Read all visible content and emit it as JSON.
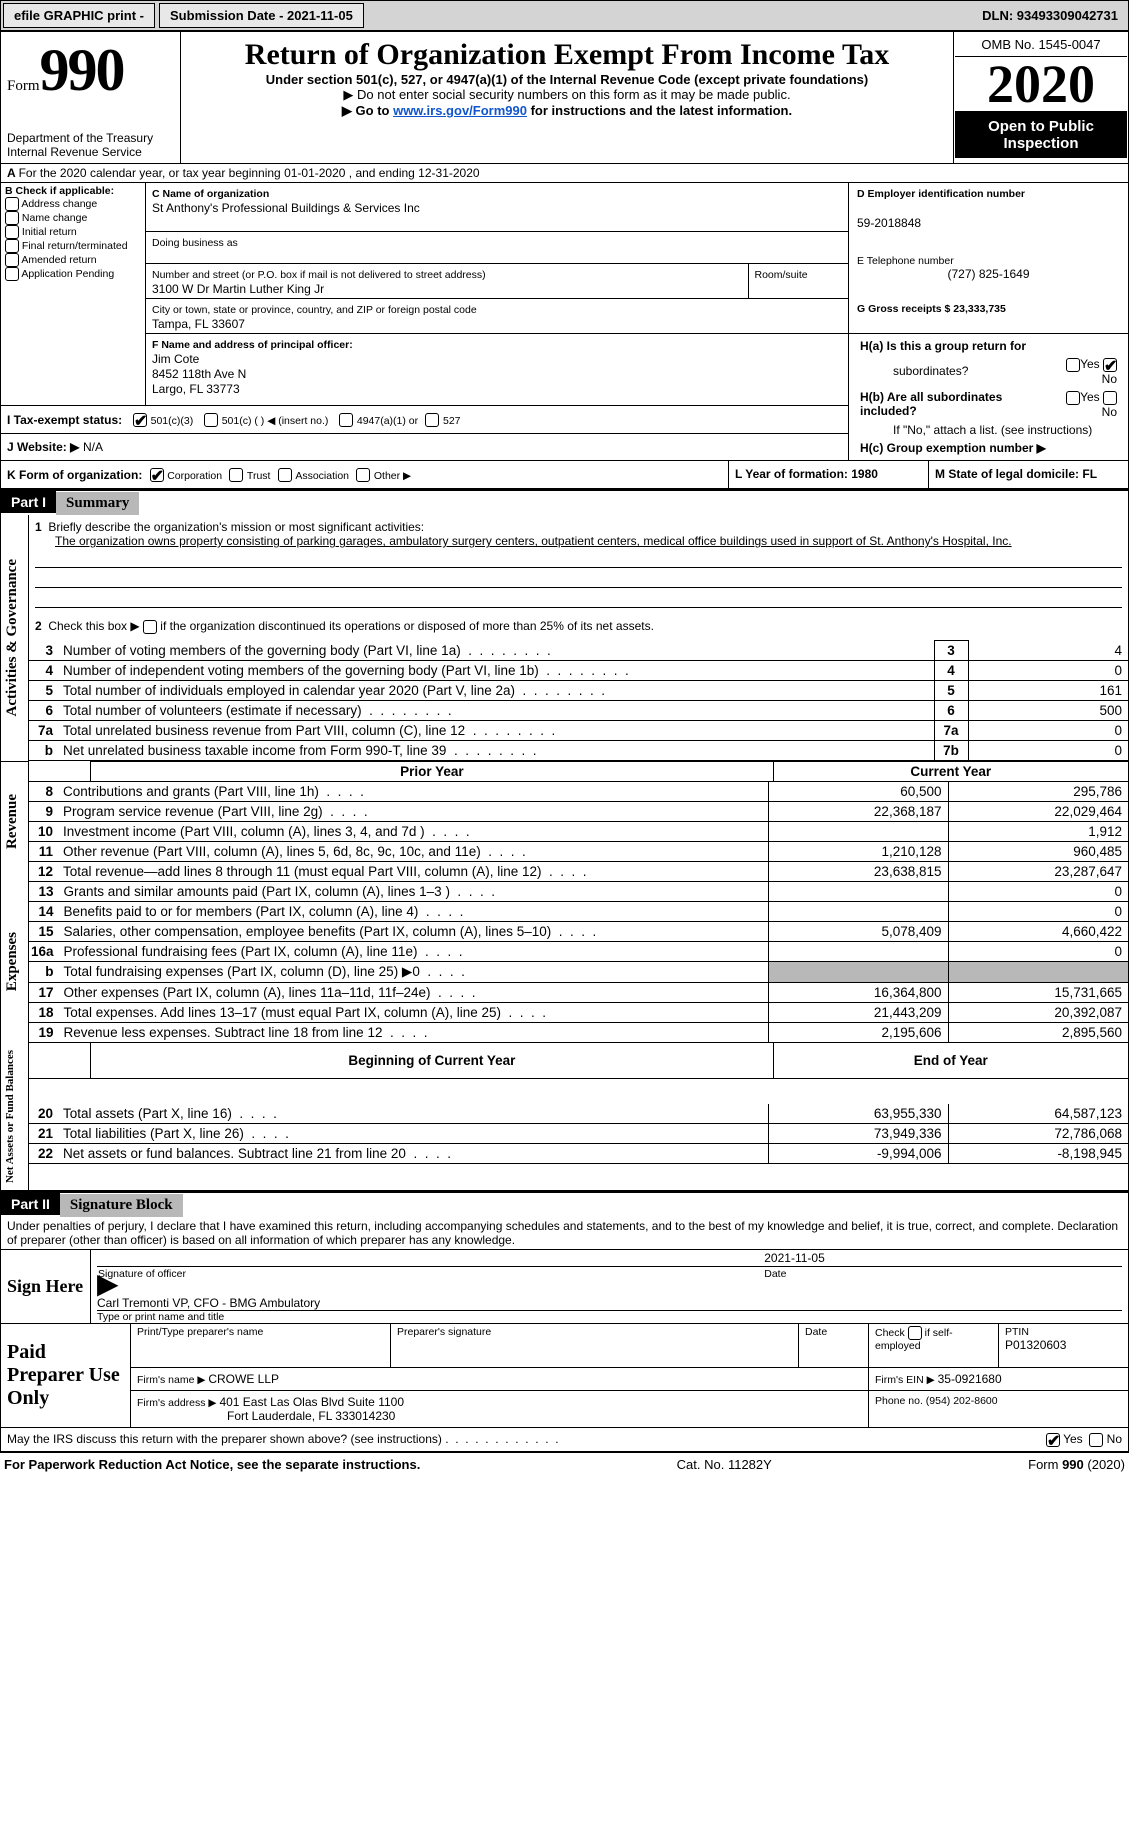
{
  "topbar": {
    "efile": "efile GRAPHIC print -",
    "submission_label": "Submission Date - 2021-11-05",
    "dln_label": "DLN: 93493309042731"
  },
  "header": {
    "form_label": "Form",
    "form_number": "990",
    "dept1": "Department of the Treasury",
    "dept2": "Internal Revenue Service",
    "title": "Return of Organization Exempt From Income Tax",
    "subtitle": "Under section 501(c), 527, or 4947(a)(1) of the Internal Revenue Code (except private foundations)",
    "note1": "▶ Do not enter social security numbers on this form as it may be made public.",
    "note2_pre": "▶ Go to ",
    "note2_link": "www.irs.gov/Form990",
    "note2_post": " for instructions and the latest information.",
    "omb": "OMB No. 1545-0047",
    "year": "2020",
    "inspect1": "Open to Public",
    "inspect2": "Inspection"
  },
  "periodA": "For the 2020 calendar year, or tax year beginning 01-01-2020   , and ending 12-31-2020",
  "boxB": {
    "label": "B Check if applicable:",
    "opts": [
      "Address change",
      "Name change",
      "Initial return",
      "Final return/terminated",
      "Amended return",
      "Application Pending"
    ]
  },
  "boxC": {
    "name_label": "C Name of organization",
    "name_value": "St Anthony's Professional Buildings & Services Inc",
    "dba_label": "Doing business as",
    "street_label": "Number and street (or P.O. box if mail is not delivered to street address)",
    "room_label": "Room/suite",
    "street_value": "3100 W Dr Martin Luther King Jr",
    "city_label": "City or town, state or province, country, and ZIP or foreign postal code",
    "city_value": "Tampa, FL  33607"
  },
  "boxD": {
    "label": "D Employer identification number",
    "value": "59-2018848"
  },
  "boxE": {
    "label": "E Telephone number",
    "value": "(727) 825-1649"
  },
  "boxG": {
    "label": "G Gross receipts $ 23,333,735"
  },
  "boxF": {
    "label": "F  Name and address of principal officer:",
    "name": "Jim Cote",
    "addr1": "8452 118th Ave N",
    "addr2": "Largo, FL  33773"
  },
  "boxH": {
    "a_label": "H(a)  Is this a group return for",
    "a_label2": "subordinates?",
    "b_label": "H(b)  Are all subordinates included?",
    "b_note": "If \"No,\" attach a list. (see instructions)",
    "c_label": "H(c)  Group exemption number ▶",
    "yes": "Yes",
    "no": "No"
  },
  "boxI": {
    "label": "I    Tax-exempt status:",
    "o1": "501(c)(3)",
    "o2": "501(c) (  ) ◀ (insert no.)",
    "o3": "4947(a)(1) or",
    "o4": "527"
  },
  "boxJ": {
    "label": "J    Website: ▶",
    "value": "  N/A"
  },
  "boxK": {
    "label": "K Form of organization:",
    "o1": "Corporation",
    "o2": "Trust",
    "o3": "Association",
    "o4": "Other ▶"
  },
  "boxL": {
    "label": "L Year of formation: 1980"
  },
  "boxM": {
    "label": "M State of legal domicile: FL"
  },
  "part1": {
    "hdr": "Part I",
    "title": "Summary",
    "side_label_1": "Activities & Governance",
    "side_label_2": "Revenue",
    "side_label_3": "Expenses",
    "side_label_4": "Net Assets or Fund Balances",
    "q1_label": "Briefly describe the organization's mission or most significant activities:",
    "q1_text": "The organization owns property consisting of parking garages, ambulatory surgery centers, outpatient centers, medical office buildings used in support of St. Anthony's Hospital, Inc.",
    "q2": "Check this box ▶        if the organization discontinued its operations or disposed of more than 25% of its net assets.",
    "rows_top": [
      {
        "n": "3",
        "label": "Number of voting members of the governing body (Part VI, line 1a)",
        "box": "3",
        "val": "4"
      },
      {
        "n": "4",
        "label": "Number of independent voting members of the governing body (Part VI, line 1b)",
        "box": "4",
        "val": "0"
      },
      {
        "n": "5",
        "label": "Total number of individuals employed in calendar year 2020 (Part V, line 2a)",
        "box": "5",
        "val": "161"
      },
      {
        "n": "6",
        "label": "Total number of volunteers (estimate if necessary)",
        "box": "6",
        "val": "500"
      },
      {
        "n": "7a",
        "label": "Total unrelated business revenue from Part VIII, column (C), line 12",
        "box": "7a",
        "val": "0"
      },
      {
        "n": "b",
        "label": "Net unrelated business taxable income from Form 990-T, line 39",
        "box": "7b",
        "val": "0"
      }
    ],
    "col_hdr_prior": "Prior Year",
    "col_hdr_current": "Current Year",
    "rows_rev": [
      {
        "n": "8",
        "label": "Contributions and grants (Part VIII, line 1h)",
        "p": "60,500",
        "c": "295,786"
      },
      {
        "n": "9",
        "label": "Program service revenue (Part VIII, line 2g)",
        "p": "22,368,187",
        "c": "22,029,464"
      },
      {
        "n": "10",
        "label": "Investment income (Part VIII, column (A), lines 3, 4, and 7d )",
        "p": "",
        "c": "1,912"
      },
      {
        "n": "11",
        "label": "Other revenue (Part VIII, column (A), lines 5, 6d, 8c, 9c, 10c, and 11e)",
        "p": "1,210,128",
        "c": "960,485"
      },
      {
        "n": "12",
        "label": "Total revenue—add lines 8 through 11 (must equal Part VIII, column (A), line 12)",
        "p": "23,638,815",
        "c": "23,287,647"
      }
    ],
    "rows_exp": [
      {
        "n": "13",
        "label": "Grants and similar amounts paid (Part IX, column (A), lines 1–3 )",
        "p": "",
        "c": "0"
      },
      {
        "n": "14",
        "label": "Benefits paid to or for members (Part IX, column (A), line 4)",
        "p": "",
        "c": "0"
      },
      {
        "n": "15",
        "label": "Salaries, other compensation, employee benefits (Part IX, column (A), lines 5–10)",
        "p": "5,078,409",
        "c": "4,660,422"
      },
      {
        "n": "16a",
        "label": "Professional fundraising fees (Part IX, column (A), line 11e)",
        "p": "",
        "c": "0"
      },
      {
        "n": "b",
        "label": "Total fundraising expenses (Part IX, column (D), line 25) ▶0",
        "p": "shaded",
        "c": "shaded"
      },
      {
        "n": "17",
        "label": "Other expenses (Part IX, column (A), lines 11a–11d, 11f–24e)",
        "p": "16,364,800",
        "c": "15,731,665"
      },
      {
        "n": "18",
        "label": "Total expenses. Add lines 13–17 (must equal Part IX, column (A), line 25)",
        "p": "21,443,209",
        "c": "20,392,087"
      },
      {
        "n": "19",
        "label": "Revenue less expenses. Subtract line 18 from line 12",
        "p": "2,195,606",
        "c": "2,895,560"
      }
    ],
    "col_hdr_begin": "Beginning of Current Year",
    "col_hdr_end": "End of Year",
    "rows_net": [
      {
        "n": "20",
        "label": "Total assets (Part X, line 16)",
        "p": "63,955,330",
        "c": "64,587,123"
      },
      {
        "n": "21",
        "label": "Total liabilities (Part X, line 26)",
        "p": "73,949,336",
        "c": "72,786,068"
      },
      {
        "n": "22",
        "label": "Net assets or fund balances. Subtract line 21 from line 20",
        "p": "-9,994,006",
        "c": "-8,198,945"
      }
    ]
  },
  "part2": {
    "hdr": "Part II",
    "title": "Signature Block",
    "penalty": "Under penalties of perjury, I declare that I have examined this return, including accompanying schedules and statements, and to the best of my knowledge and belief, it is true, correct, and complete. Declaration of preparer (other than officer) is based on all information of which preparer has any knowledge.",
    "sign_here": "Sign Here",
    "sig_officer": "Signature of officer",
    "sig_date": "2021-11-05",
    "date_lbl": "Date",
    "officer_name": "Carl Tremonti  VP, CFO - BMG Ambulatory",
    "officer_type_lbl": "Type or print name and title",
    "paid_prep": "Paid Preparer Use Only",
    "prep_name_lbl": "Print/Type preparer's name",
    "prep_sig_lbl": "Preparer's signature",
    "prep_date_lbl": "Date",
    "check_self": "Check        if self-employed",
    "ptin_lbl": "PTIN",
    "ptin_val": "P01320603",
    "firm_name_lbl": "Firm's name   ▶",
    "firm_name": "CROWE LLP",
    "firm_ein_lbl": "Firm's EIN ▶",
    "firm_ein": "35-0921680",
    "firm_addr_lbl": "Firm's address ▶",
    "firm_addr1": "401 East Las Olas Blvd Suite 1100",
    "firm_addr2": "Fort Lauderdale, FL  333014230",
    "phone_lbl": "Phone no. (954) 202-8600",
    "discuss": "May the IRS discuss this return with the preparer shown above? (see instructions)",
    "yes": "Yes",
    "no": "No"
  },
  "footer": {
    "left": "For Paperwork Reduction Act Notice, see the separate instructions.",
    "mid": "Cat. No. 11282Y",
    "right": "Form 990 (2020)"
  }
}
